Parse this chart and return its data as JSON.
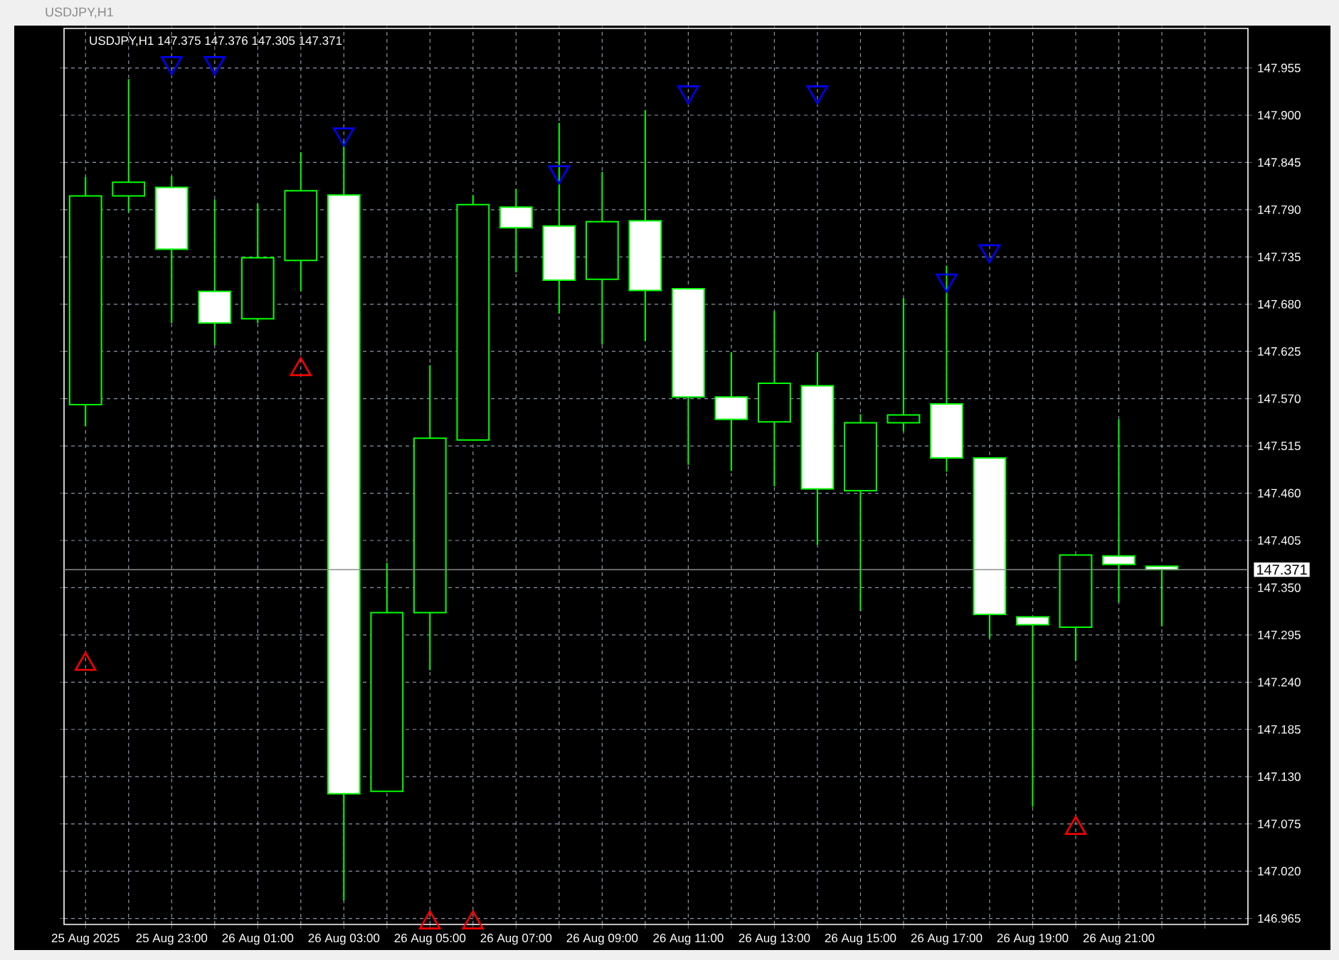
{
  "chart_data": {
    "type": "candlestick",
    "title": "USDJPY,H1",
    "subtitle": "USDJPY,H1 147.375 147.376 147.305 147.371",
    "color": "#00ff00",
    "x": [
      "2025-08-25T21:00",
      "2025-08-25T22:00",
      "2025-08-25T23:00",
      "2025-08-26T00:00",
      "2025-08-26T01:00",
      "2025-08-26T02:00",
      "2025-08-26T03:00",
      "2025-08-26T04:00",
      "2025-08-26T05:00",
      "2025-08-26T06:00",
      "2025-08-26T07:00",
      "2025-08-26T08:00",
      "2025-08-26T09:00",
      "2025-08-26T10:00",
      "2025-08-26T11:00",
      "2025-08-26T12:00",
      "2025-08-26T13:00",
      "2025-08-26T14:00",
      "2025-08-26T15:00",
      "2025-08-26T16:00",
      "2025-08-26T17:00",
      "2025-08-26T18:00",
      "2025-08-26T19:00",
      "2025-08-26T20:00",
      "2025-08-26T21:00",
      "2025-08-26T22:00"
    ],
    "ohlc": [
      [
        147.563,
        147.828,
        147.538,
        147.806
      ],
      [
        147.806,
        147.942,
        147.787,
        147.822
      ],
      [
        147.816,
        147.829,
        147.658,
        147.744
      ],
      [
        147.695,
        147.802,
        147.632,
        147.658
      ],
      [
        147.663,
        147.797,
        147.658,
        147.734
      ],
      [
        147.731,
        147.857,
        147.695,
        147.812
      ],
      [
        147.807,
        147.869,
        146.986,
        147.11
      ],
      [
        147.113,
        147.379,
        147.113,
        147.321
      ],
      [
        147.321,
        147.609,
        147.254,
        147.524
      ],
      [
        147.522,
        147.807,
        147.522,
        147.796
      ],
      [
        147.793,
        147.814,
        147.717,
        147.769
      ],
      [
        147.771,
        147.891,
        147.669,
        147.708
      ],
      [
        147.709,
        147.834,
        147.633,
        147.776
      ],
      [
        147.777,
        147.906,
        147.637,
        147.696
      ],
      [
        147.698,
        147.698,
        147.493,
        147.572
      ],
      [
        147.572,
        147.624,
        147.486,
        147.546
      ],
      [
        147.543,
        147.672,
        147.468,
        147.588
      ],
      [
        147.585,
        147.624,
        147.4,
        147.465
      ],
      [
        147.463,
        147.552,
        147.323,
        147.542
      ],
      [
        147.542,
        147.687,
        147.532,
        147.551
      ],
      [
        147.564,
        147.725,
        147.485,
        147.501
      ],
      [
        147.501,
        147.501,
        147.291,
        147.319
      ],
      [
        147.316,
        147.316,
        147.095,
        147.307
      ],
      [
        147.304,
        147.388,
        147.265,
        147.388
      ],
      [
        147.387,
        147.546,
        147.333,
        147.377
      ],
      [
        147.375,
        147.376,
        147.305,
        147.371
      ]
    ],
    "series": [
      {
        "type": "scatter",
        "color": "#0000ff",
        "marker": "triangle",
        "x": [
          "2025-08-25T23:00",
          "2025-08-26T00:00",
          "2025-08-26T03:00",
          "2025-08-26T08:00",
          "2025-08-26T11:00",
          "2025-08-26T14:00",
          "2025-08-26T17:00",
          "2025-08-26T18:00"
        ],
        "values": [
          147.961,
          147.961,
          147.878,
          147.834,
          147.927,
          147.927,
          147.708,
          147.742
        ]
      },
      {
        "type": "scatter",
        "color": "#ff0000",
        "marker": "triangle",
        "x": [
          "2025-08-25T21:00",
          "2025-08-26T02:00",
          "2025-08-26T05:00",
          "2025-08-26T06:00",
          "2025-08-26T20:00"
        ],
        "values": [
          147.261,
          147.604,
          146.96,
          146.96,
          147.07
        ]
      }
    ],
    "xlim": [
      "2025-08-25T20:30",
      "2025-08-27T00:00"
    ],
    "ylim": [
      146.958,
      148.001
    ],
    "xticks": [
      {
        "value": "2025-08-25T21:00",
        "label": "25 Aug 2025"
      },
      {
        "value": "2025-08-25T22:00",
        "label": null
      },
      {
        "value": "2025-08-25T23:00",
        "label": "25 Aug 23:00"
      },
      {
        "value": "2025-08-26T00:00",
        "label": null
      },
      {
        "value": "2025-08-26T01:00",
        "label": "26 Aug 01:00"
      },
      {
        "value": "2025-08-26T02:00",
        "label": null
      },
      {
        "value": "2025-08-26T03:00",
        "label": "26 Aug 03:00"
      },
      {
        "value": "2025-08-26T04:00",
        "label": null
      },
      {
        "value": "2025-08-26T05:00",
        "label": "26 Aug 05:00"
      },
      {
        "value": "2025-08-26T06:00",
        "label": null
      },
      {
        "value": "2025-08-26T07:00",
        "label": "26 Aug 07:00"
      },
      {
        "value": "2025-08-26T08:00",
        "label": null
      },
      {
        "value": "2025-08-26T09:00",
        "label": "26 Aug 09:00"
      },
      {
        "value": "2025-08-26T10:00",
        "label": null
      },
      {
        "value": "2025-08-26T11:00",
        "label": "26 Aug 11:00"
      },
      {
        "value": "2025-08-26T12:00",
        "label": null
      },
      {
        "value": "2025-08-26T13:00",
        "label": "26 Aug 13:00"
      },
      {
        "value": "2025-08-26T14:00",
        "label": null
      },
      {
        "value": "2025-08-26T15:00",
        "label": "26 Aug 15:00"
      },
      {
        "value": "2025-08-26T16:00",
        "label": null
      },
      {
        "value": "2025-08-26T17:00",
        "label": "26 Aug 17:00"
      },
      {
        "value": "2025-08-26T18:00",
        "label": null
      },
      {
        "value": "2025-08-26T19:00",
        "label": "26 Aug 19:00"
      },
      {
        "value": "2025-08-26T20:00",
        "label": null
      },
      {
        "value": "2025-08-26T21:00",
        "label": "26 Aug 21:00"
      },
      {
        "value": "2025-08-26T22:00",
        "label": null
      },
      {
        "value": "2025-08-26T23:00",
        "label": null
      }
    ],
    "yticks": [
      {
        "value": 146.965,
        "label": "146.965"
      },
      {
        "value": 147.02,
        "label": "147.020"
      },
      {
        "value": 147.075,
        "label": "147.075"
      },
      {
        "value": 147.13,
        "label": "147.130"
      },
      {
        "value": 147.185,
        "label": "147.185"
      },
      {
        "value": 147.24,
        "label": "147.240"
      },
      {
        "value": 147.295,
        "label": "147.295"
      },
      {
        "value": 147.35,
        "label": "147.350"
      },
      {
        "value": 147.405,
        "label": "147.405"
      },
      {
        "value": 147.46,
        "label": "147.460"
      },
      {
        "value": 147.515,
        "label": "147.515"
      },
      {
        "value": 147.57,
        "label": "147.570"
      },
      {
        "value": 147.625,
        "label": "147.625"
      },
      {
        "value": 147.68,
        "label": "147.680"
      },
      {
        "value": 147.735,
        "label": "147.735"
      },
      {
        "value": 147.79,
        "label": "147.790"
      },
      {
        "value": 147.845,
        "label": "147.845"
      },
      {
        "value": 147.9,
        "label": "147.900"
      },
      {
        "value": 147.955,
        "label": "147.955"
      }
    ],
    "ref_lines": [
      {
        "axis": "y",
        "value": 147.371,
        "label": "147.371",
        "color": "#8c8c8c"
      }
    ],
    "grid": true
  }
}
